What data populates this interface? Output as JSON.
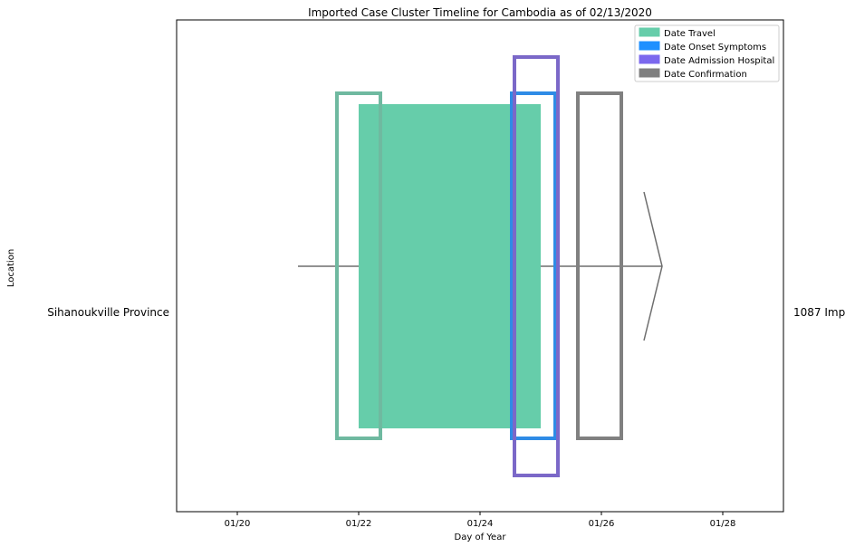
{
  "chart_data": {
    "type": "timeline",
    "title": "Imported Case Cluster Timeline for Cambodia as of 02/13/2020",
    "xlabel": "Day of Year",
    "ylabel": "Location",
    "x_ticks": [
      "01/20",
      "01/22",
      "01/24",
      "01/26",
      "01/28"
    ],
    "x_range": [
      "01/19",
      "01/29"
    ],
    "row": {
      "location": "Sihanoukville Province",
      "case_label": "1087 Imp"
    },
    "arrow": {
      "start": "01/21",
      "end": "01/27"
    },
    "events": [
      {
        "name": "Date Travel",
        "color": "#66cdaa",
        "start": "01/22",
        "end": "01/25",
        "fill": true
      },
      {
        "name": "Date Travel",
        "color": "#6fb9a0",
        "start": "01/22",
        "end": "01/22",
        "outline": "standard"
      },
      {
        "name": "Date Onset Symptoms",
        "color": "#2e8be6",
        "start": "01/25",
        "end": "01/25",
        "outline": "standard"
      },
      {
        "name": "Date Admission Hospital",
        "color": "#7b68c8",
        "start": "01/25",
        "end": "01/25",
        "outline": "tall"
      },
      {
        "name": "Date Confirmation",
        "color": "#808080",
        "start": "01/26",
        "end": "01/26",
        "outline": "standard"
      }
    ],
    "legend": {
      "placement": "top-right",
      "entries": [
        {
          "label": "Date Travel",
          "color": "#66cdaa"
        },
        {
          "label": "Date Onset Symptoms",
          "color": "#1e90ff"
        },
        {
          "label": "Date Admission Hospital",
          "color": "#7b68ee"
        },
        {
          "label": "Date Confirmation",
          "color": "#808080"
        }
      ]
    },
    "grid": false
  }
}
